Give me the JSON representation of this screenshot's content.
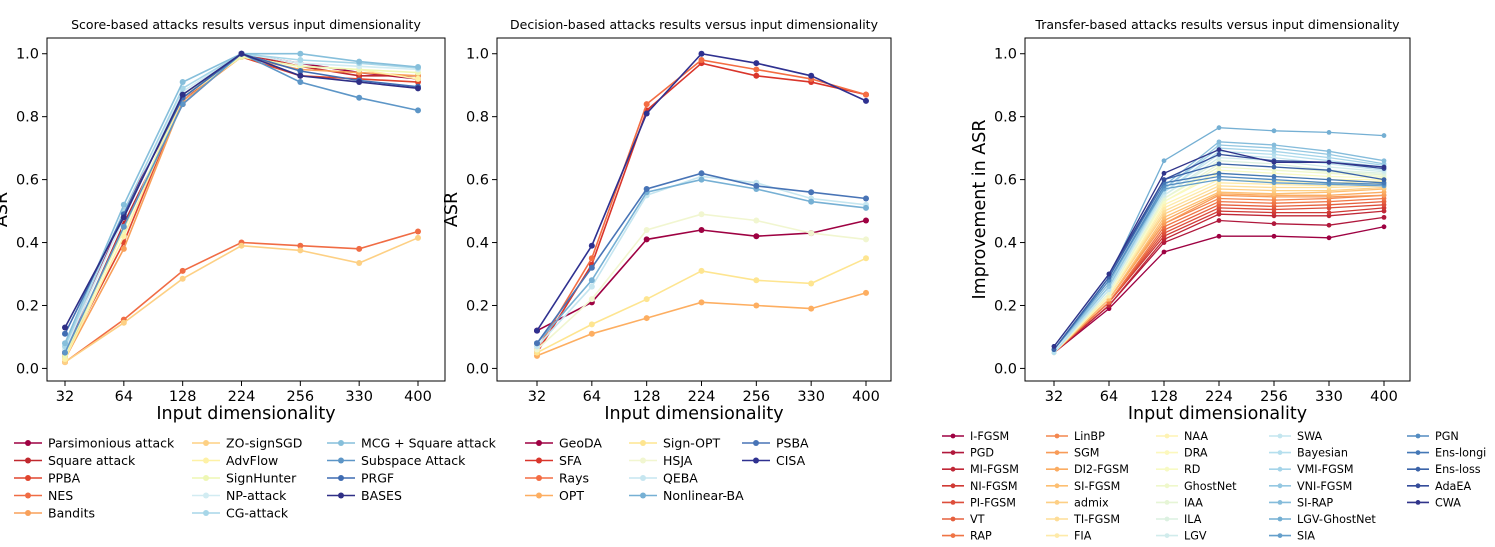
{
  "chart_data": [
    {
      "type": "line",
      "title": "Score-based attacks results versus input dimensionality",
      "xlabel": "Input dimensionality",
      "ylabel": "ASR",
      "categories": [
        "32",
        "64",
        "128",
        "224",
        "256",
        "330",
        "400"
      ],
      "ylim": [
        -0.04,
        1.05
      ],
      "yticks": [
        "0.0",
        "0.2",
        "0.4",
        "0.6",
        "0.8",
        "1.0"
      ],
      "legend_cols": 3,
      "series": [
        {
          "name": "Parsimonious attack",
          "color": "#9e0142",
          "values": [
            0.05,
            0.5,
            0.85,
            1.0,
            0.97,
            0.94,
            0.92
          ]
        },
        {
          "name": "Square attack",
          "color": "#c0282e",
          "values": [
            0.04,
            0.46,
            0.84,
            1.0,
            0.96,
            0.93,
            0.93
          ]
        },
        {
          "name": "PPBA",
          "color": "#e0452e",
          "values": [
            0.04,
            0.4,
            0.86,
            0.99,
            0.93,
            0.92,
            0.91
          ]
        },
        {
          "name": "NES",
          "color": "#f06c44",
          "values": [
            0.02,
            0.155,
            0.31,
            0.4,
            0.39,
            0.38,
            0.435
          ]
        },
        {
          "name": "Bandits",
          "color": "#f8a05a",
          "values": [
            0.03,
            0.38,
            0.85,
            0.99,
            0.95,
            0.94,
            0.93
          ]
        },
        {
          "name": "ZO-signSGD",
          "color": "#fdd084",
          "values": [
            0.02,
            0.145,
            0.285,
            0.39,
            0.375,
            0.335,
            0.415
          ]
        },
        {
          "name": "AdvFlow",
          "color": "#fef1a6",
          "values": [
            0.03,
            0.42,
            0.86,
            0.99,
            0.96,
            0.95,
            0.92
          ]
        },
        {
          "name": "SignHunter",
          "color": "#eef7b4",
          "values": [
            0.04,
            0.44,
            0.87,
            0.99,
            0.96,
            0.95,
            0.94
          ]
        },
        {
          "name": "NP-attack",
          "color": "#d2ecf2",
          "values": [
            0.06,
            0.48,
            0.88,
            1.0,
            0.97,
            0.96,
            0.95
          ]
        },
        {
          "name": "CG-attack",
          "color": "#a7d6e8",
          "values": [
            0.07,
            0.5,
            0.89,
            1.0,
            0.98,
            0.97,
            0.955
          ]
        },
        {
          "name": "MCG + Square attack",
          "color": "#86bfdb",
          "values": [
            0.08,
            0.52,
            0.91,
            1.0,
            1.0,
            0.975,
            0.958
          ]
        },
        {
          "name": "Subspace Attack",
          "color": "#5d96c7",
          "values": [
            0.05,
            0.45,
            0.84,
            1.0,
            0.91,
            0.86,
            0.82
          ]
        },
        {
          "name": "PRGF",
          "color": "#3f6cb2",
          "values": [
            0.11,
            0.49,
            0.86,
            1.0,
            0.945,
            0.915,
            0.895
          ]
        },
        {
          "name": "BASES",
          "color": "#2f2f86",
          "values": [
            0.13,
            0.48,
            0.87,
            1.0,
            0.93,
            0.91,
            0.89
          ]
        }
      ]
    },
    {
      "type": "line",
      "title": "Decision-based attacks results versus input dimensionality",
      "xlabel": "Input dimensionality",
      "ylabel": "ASR",
      "categories": [
        "32",
        "64",
        "128",
        "224",
        "256",
        "330",
        "400"
      ],
      "ylim": [
        -0.04,
        1.05
      ],
      "yticks": [
        "0.0",
        "0.2",
        "0.4",
        "0.6",
        "0.8",
        "1.0"
      ],
      "legend_cols": 3,
      "series": [
        {
          "name": "GeoDA",
          "color": "#9e0142",
          "values": [
            0.12,
            0.21,
            0.41,
            0.44,
            0.42,
            0.43,
            0.47
          ]
        },
        {
          "name": "SFA",
          "color": "#d9352b",
          "values": [
            0.05,
            0.33,
            0.82,
            0.97,
            0.93,
            0.91,
            0.87
          ]
        },
        {
          "name": "Rays",
          "color": "#f46d43",
          "values": [
            0.06,
            0.35,
            0.84,
            0.98,
            0.95,
            0.92,
            0.87
          ]
        },
        {
          "name": "OPT",
          "color": "#fdae61",
          "values": [
            0.04,
            0.11,
            0.16,
            0.21,
            0.2,
            0.19,
            0.24
          ]
        },
        {
          "name": "Sign-OPT",
          "color": "#fee590",
          "values": [
            0.05,
            0.14,
            0.22,
            0.31,
            0.28,
            0.27,
            0.35
          ]
        },
        {
          "name": "HSJA",
          "color": "#f1f6d0",
          "values": [
            0.06,
            0.22,
            0.44,
            0.49,
            0.47,
            0.43,
            0.41
          ]
        },
        {
          "name": "QEBA",
          "color": "#c6e6f0",
          "values": [
            0.07,
            0.26,
            0.55,
            0.61,
            0.59,
            0.54,
            0.52
          ]
        },
        {
          "name": "Nonlinear-BA",
          "color": "#76b0d4",
          "values": [
            0.08,
            0.28,
            0.56,
            0.6,
            0.57,
            0.53,
            0.51
          ]
        },
        {
          "name": "PSBA",
          "color": "#4874b6",
          "values": [
            0.08,
            0.32,
            0.57,
            0.62,
            0.58,
            0.56,
            0.54
          ]
        },
        {
          "name": "CISA",
          "color": "#2f3190",
          "values": [
            0.12,
            0.39,
            0.81,
            1.0,
            0.97,
            0.93,
            0.85
          ]
        }
      ]
    },
    {
      "type": "line",
      "title": "Transfer-based attacks results versus input dimensionality",
      "xlabel": "Input dimensionality",
      "ylabel": "Improvement in ASR",
      "categories": [
        "32",
        "64",
        "128",
        "224",
        "256",
        "330",
        "400"
      ],
      "ylim": [
        -0.04,
        1.05
      ],
      "yticks": [
        "0.0",
        "0.2",
        "0.4",
        "0.6",
        "0.8",
        "1.0"
      ],
      "legend_cols": 5,
      "series": [
        {
          "name": "I-FGSM",
          "color": "#9e0142",
          "values": [
            0.05,
            0.19,
            0.37,
            0.42,
            0.42,
            0.415,
            0.45
          ]
        },
        {
          "name": "PGD",
          "color": "#b0183c",
          "values": [
            0.05,
            0.2,
            0.4,
            0.47,
            0.46,
            0.455,
            0.48
          ]
        },
        {
          "name": "MI-FGSM",
          "color": "#c02837",
          "values": [
            0.05,
            0.2,
            0.41,
            0.49,
            0.485,
            0.485,
            0.5
          ]
        },
        {
          "name": "NI-FGSM",
          "color": "#d03a35",
          "values": [
            0.05,
            0.21,
            0.42,
            0.5,
            0.495,
            0.495,
            0.51
          ]
        },
        {
          "name": "PI-FGSM",
          "color": "#dd4e3b",
          "values": [
            0.05,
            0.21,
            0.43,
            0.51,
            0.505,
            0.51,
            0.52
          ]
        },
        {
          "name": "VT",
          "color": "#e6603e",
          "values": [
            0.05,
            0.21,
            0.44,
            0.52,
            0.515,
            0.52,
            0.53
          ]
        },
        {
          "name": "RAP",
          "color": "#ef7445",
          "values": [
            0.05,
            0.21,
            0.45,
            0.53,
            0.525,
            0.53,
            0.54
          ]
        },
        {
          "name": "LinBP",
          "color": "#f4874f",
          "values": [
            0.05,
            0.22,
            0.46,
            0.54,
            0.535,
            0.54,
            0.55
          ]
        },
        {
          "name": "SGM",
          "color": "#f89b58",
          "values": [
            0.05,
            0.22,
            0.46,
            0.55,
            0.545,
            0.545,
            0.55
          ]
        },
        {
          "name": "DI2-FGSM",
          "color": "#fbac62",
          "values": [
            0.05,
            0.22,
            0.47,
            0.555,
            0.55,
            0.55,
            0.56
          ]
        },
        {
          "name": "SI-FGSM",
          "color": "#fdbf72",
          "values": [
            0.05,
            0.22,
            0.48,
            0.56,
            0.555,
            0.56,
            0.57
          ]
        },
        {
          "name": "admix",
          "color": "#fdcf85",
          "values": [
            0.05,
            0.23,
            0.49,
            0.57,
            0.565,
            0.565,
            0.575
          ]
        },
        {
          "name": "TI-FGSM",
          "color": "#fedd97",
          "values": [
            0.05,
            0.23,
            0.5,
            0.58,
            0.575,
            0.575,
            0.58
          ]
        },
        {
          "name": "FIA",
          "color": "#feeaa9",
          "values": [
            0.05,
            0.23,
            0.51,
            0.59,
            0.585,
            0.58,
            0.59
          ]
        },
        {
          "name": "NAA",
          "color": "#fef3b4",
          "values": [
            0.05,
            0.23,
            0.52,
            0.6,
            0.595,
            0.59,
            0.595
          ]
        },
        {
          "name": "DRA",
          "color": "#fcf8bd",
          "values": [
            0.05,
            0.24,
            0.53,
            0.62,
            0.61,
            0.6,
            0.6
          ]
        },
        {
          "name": "RD",
          "color": "#f7fac4",
          "values": [
            0.05,
            0.24,
            0.53,
            0.63,
            0.62,
            0.61,
            0.605
          ]
        },
        {
          "name": "GhostNet",
          "color": "#eff8cb",
          "values": [
            0.05,
            0.24,
            0.54,
            0.64,
            0.63,
            0.62,
            0.61
          ]
        },
        {
          "name": "IAA",
          "color": "#e6f5d6",
          "values": [
            0.05,
            0.24,
            0.54,
            0.65,
            0.64,
            0.625,
            0.615
          ]
        },
        {
          "name": "ILA",
          "color": "#dcf1e1",
          "values": [
            0.05,
            0.25,
            0.55,
            0.66,
            0.65,
            0.63,
            0.62
          ]
        },
        {
          "name": "LGV",
          "color": "#d1ecec",
          "values": [
            0.05,
            0.25,
            0.55,
            0.67,
            0.66,
            0.64,
            0.625
          ]
        },
        {
          "name": "SWA",
          "color": "#c4e6ef",
          "values": [
            0.05,
            0.25,
            0.56,
            0.68,
            0.67,
            0.65,
            0.63
          ]
        },
        {
          "name": "Bayesian",
          "color": "#b5dfee",
          "values": [
            0.05,
            0.26,
            0.56,
            0.69,
            0.68,
            0.66,
            0.64
          ]
        },
        {
          "name": "VMI-FGSM",
          "color": "#a5d4e9",
          "values": [
            0.06,
            0.26,
            0.57,
            0.7,
            0.69,
            0.67,
            0.645
          ]
        },
        {
          "name": "VNI-FGSM",
          "color": "#95c8e2",
          "values": [
            0.06,
            0.26,
            0.57,
            0.71,
            0.7,
            0.68,
            0.65
          ]
        },
        {
          "name": "SI-RAP",
          "color": "#85bcdb",
          "values": [
            0.06,
            0.27,
            0.58,
            0.72,
            0.71,
            0.69,
            0.66
          ]
        },
        {
          "name": "LGV-GhostNet",
          "color": "#74afd3",
          "values": [
            0.06,
            0.29,
            0.66,
            0.765,
            0.755,
            0.75,
            0.74
          ]
        },
        {
          "name": "SIA",
          "color": "#649fcb",
          "values": [
            0.06,
            0.28,
            0.57,
            0.6,
            0.59,
            0.585,
            0.58
          ]
        },
        {
          "name": "PGN",
          "color": "#538cc1",
          "values": [
            0.06,
            0.28,
            0.58,
            0.61,
            0.6,
            0.59,
            0.585
          ]
        },
        {
          "name": "Ens-longi",
          "color": "#4478b6",
          "values": [
            0.06,
            0.29,
            0.59,
            0.62,
            0.61,
            0.6,
            0.59
          ]
        },
        {
          "name": "Ens-loss",
          "color": "#3b63a8",
          "values": [
            0.06,
            0.29,
            0.6,
            0.65,
            0.64,
            0.63,
            0.6
          ]
        },
        {
          "name": "AdaEA",
          "color": "#354c9a",
          "values": [
            0.07,
            0.3,
            0.6,
            0.68,
            0.66,
            0.655,
            0.635
          ]
        },
        {
          "name": "CWA",
          "color": "#30348a",
          "values": [
            0.07,
            0.3,
            0.62,
            0.695,
            0.655,
            0.655,
            0.64
          ]
        }
      ]
    }
  ]
}
